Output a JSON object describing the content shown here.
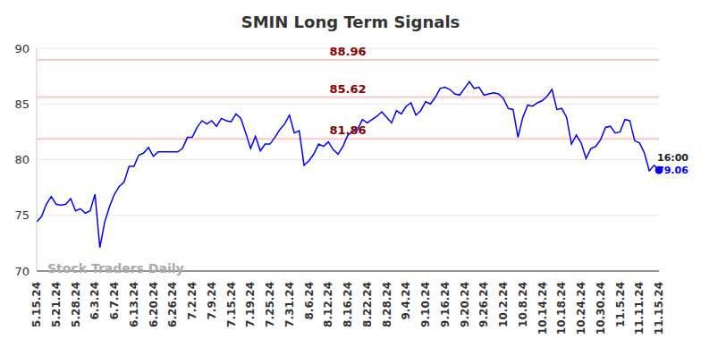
{
  "chart_data": {
    "type": "line",
    "title": "SMIN Long Term Signals",
    "watermark": "Stock Traders Daily",
    "last_point_label": "16:00",
    "color": "#0000ff",
    "ylim": [
      70,
      90
    ],
    "yticks": [
      70,
      75,
      80,
      85,
      90
    ],
    "grid": true,
    "reference_lines": [
      88.96,
      85.62,
      81.86
    ],
    "categories": [
      "5.15.24",
      null,
      null,
      null,
      "5.21.24",
      null,
      null,
      null,
      "5.28.24",
      null,
      null,
      null,
      "6.3.24",
      null,
      null,
      null,
      "6.7.24",
      null,
      null,
      null,
      "6.13.24",
      null,
      null,
      null,
      "6.20.24",
      null,
      null,
      null,
      "6.26.24",
      null,
      null,
      null,
      "7.2.24",
      null,
      null,
      null,
      "7.9.24",
      null,
      null,
      null,
      "7.15.24",
      null,
      null,
      null,
      "7.19.24",
      null,
      null,
      null,
      "7.25.24",
      null,
      null,
      null,
      "7.31.24",
      null,
      null,
      null,
      "8.6.24",
      null,
      null,
      null,
      "8.12.24",
      null,
      null,
      null,
      "8.16.24",
      null,
      null,
      null,
      "8.22.24",
      null,
      null,
      null,
      "8.28.24",
      null,
      null,
      null,
      "9.4.24",
      null,
      null,
      null,
      "9.10.24",
      null,
      null,
      null,
      "9.16.24",
      null,
      null,
      null,
      "9.20.24",
      null,
      null,
      null,
      "9.26.24",
      null,
      null,
      null,
      "10.2.24",
      null,
      null,
      null,
      "10.8.24",
      null,
      null,
      null,
      "10.14.24",
      null,
      null,
      null,
      "10.18.24",
      null,
      null,
      null,
      "10.24.24",
      null,
      null,
      null,
      "10.30.24",
      null,
      null,
      null,
      "11.5.24",
      null,
      null,
      null,
      "11.11.24",
      null,
      null,
      null,
      "11.15.24"
    ],
    "values": [
      74.4,
      74.9,
      76.0,
      76.7,
      76.0,
      75.9,
      76.0,
      76.5,
      75.4,
      75.6,
      75.2,
      75.4,
      76.9,
      72.1,
      74.4,
      75.8,
      76.9,
      77.6,
      78.0,
      79.4,
      79.4,
      80.4,
      80.6,
      81.1,
      80.3,
      80.7,
      80.7,
      80.7,
      80.7,
      80.7,
      81.0,
      82.0,
      82.0,
      82.9,
      83.5,
      83.2,
      83.5,
      83.0,
      83.7,
      83.5,
      83.4,
      84.1,
      83.7,
      82.4,
      81.0,
      82.1,
      80.8,
      81.4,
      81.4,
      82.0,
      82.7,
      83.2,
      84.0,
      82.4,
      82.6,
      79.5,
      79.9,
      80.5,
      81.4,
      81.2,
      81.6,
      80.9,
      80.5,
      81.2,
      82.2,
      82.5,
      82.7,
      83.6,
      83.3,
      83.6,
      83.9,
      84.3,
      83.8,
      83.3,
      84.4,
      84.1,
      84.8,
      85.1,
      84.0,
      84.4,
      85.2,
      85.0,
      85.6,
      86.4,
      86.5,
      86.3,
      85.9,
      85.8,
      86.4,
      87.0,
      86.4,
      86.5,
      85.8,
      85.9,
      86.0,
      85.9,
      85.5,
      84.6,
      84.5,
      82.0,
      83.8,
      84.9,
      84.8,
      85.1,
      85.3,
      85.7,
      86.3,
      84.5,
      84.6,
      83.8,
      81.4,
      82.2,
      81.5,
      80.1,
      81.0,
      81.2,
      81.8,
      82.9,
      83.0,
      82.4,
      82.5,
      83.6,
      83.5,
      81.7,
      81.5,
      80.6,
      79.0,
      79.5,
      79.06
    ]
  }
}
